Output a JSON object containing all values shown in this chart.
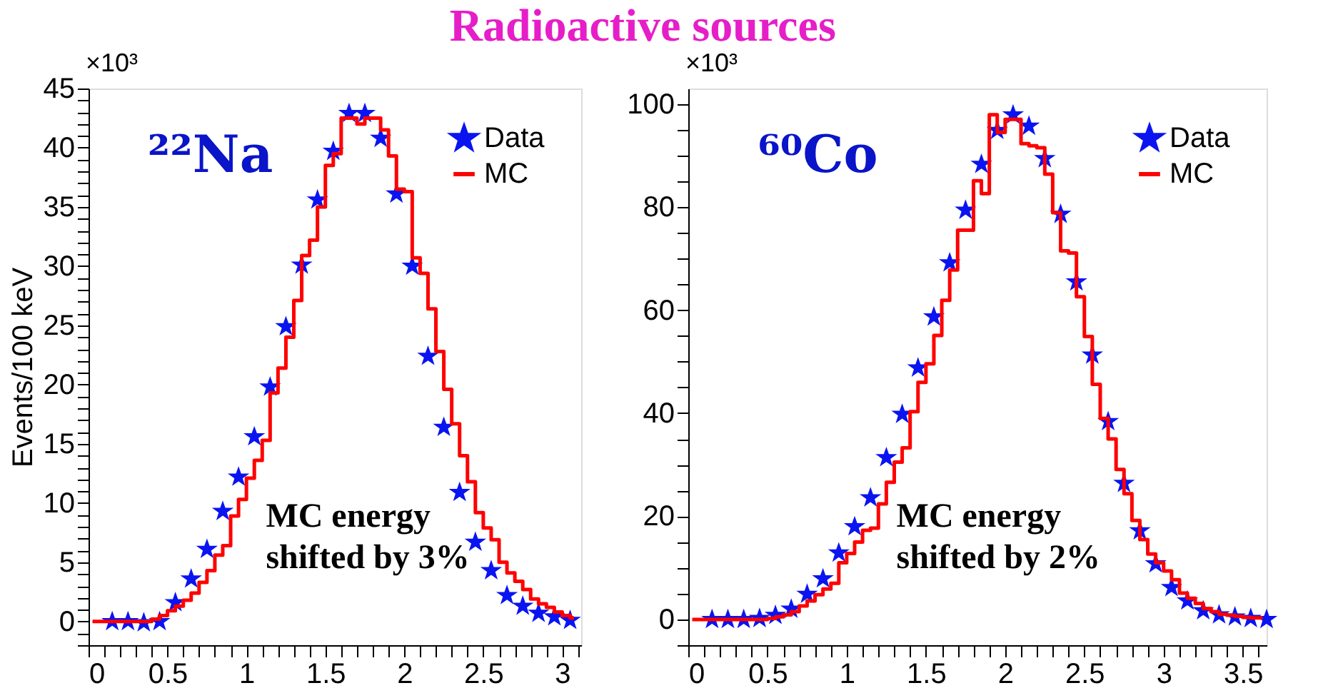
{
  "chart_data": [
    {
      "type": "scatter",
      "title": "Radioactive sources",
      "ylabel": "Events/100 keV",
      "annotations": [
        "×10³",
        "²²Na",
        "MC energy\nshifted by 3%"
      ],
      "xlim": [
        0,
        3.12
      ],
      "ylim": [
        -2,
        45
      ],
      "xticks": [
        0,
        {
          "value": 0.1,
          "label": null
        },
        {
          "value": 0.2,
          "label": null
        },
        {
          "value": 0.3,
          "label": null
        },
        {
          "value": 0.4,
          "label": null
        },
        0.5,
        {
          "value": 0.6,
          "label": null
        },
        {
          "value": 0.7,
          "label": null
        },
        {
          "value": 0.8,
          "label": null
        },
        {
          "value": 0.9,
          "label": null
        },
        1,
        {
          "value": 1.1,
          "label": null
        },
        {
          "value": 1.2,
          "label": null
        },
        {
          "value": 1.3,
          "label": null
        },
        {
          "value": 1.4,
          "label": null
        },
        1.5,
        {
          "value": 1.6,
          "label": null
        },
        {
          "value": 1.7,
          "label": null
        },
        {
          "value": 1.8,
          "label": null
        },
        {
          "value": 1.9,
          "label": null
        },
        2,
        {
          "value": 2.1,
          "label": null
        },
        {
          "value": 2.2,
          "label": null
        },
        {
          "value": 2.3,
          "label": null
        },
        {
          "value": 2.4,
          "label": null
        },
        2.5,
        {
          "value": 2.6,
          "label": null
        },
        {
          "value": 2.7,
          "label": null
        },
        {
          "value": 2.8,
          "label": null
        },
        {
          "value": 2.9,
          "label": null
        },
        3,
        {
          "value": 3.1,
          "label": null
        }
      ],
      "yticks": [
        {
          "value": -2,
          "label": null
        },
        {
          "value": -1,
          "label": null
        },
        0,
        {
          "value": 1,
          "label": null
        },
        {
          "value": 2,
          "label": null
        },
        {
          "value": 3,
          "label": null
        },
        {
          "value": 4,
          "label": null
        },
        5,
        {
          "value": 6,
          "label": null
        },
        {
          "value": 7,
          "label": null
        },
        {
          "value": 8,
          "label": null
        },
        {
          "value": 9,
          "label": null
        },
        10,
        {
          "value": 11,
          "label": null
        },
        {
          "value": 12,
          "label": null
        },
        {
          "value": 13,
          "label": null
        },
        {
          "value": 14,
          "label": null
        },
        15,
        {
          "value": 16,
          "label": null
        },
        {
          "value": 17,
          "label": null
        },
        {
          "value": 18,
          "label": null
        },
        {
          "value": 19,
          "label": null
        },
        20,
        {
          "value": 21,
          "label": null
        },
        {
          "value": 22,
          "label": null
        },
        {
          "value": 23,
          "label": null
        },
        {
          "value": 24,
          "label": null
        },
        25,
        {
          "value": 26,
          "label": null
        },
        {
          "value": 27,
          "label": null
        },
        {
          "value": 28,
          "label": null
        },
        {
          "value": 29,
          "label": null
        },
        30,
        {
          "value": 31,
          "label": null
        },
        {
          "value": 32,
          "label": null
        },
        {
          "value": 33,
          "label": null
        },
        {
          "value": 34,
          "label": null
        },
        35,
        {
          "value": 36,
          "label": null
        },
        {
          "value": 37,
          "label": null
        },
        {
          "value": 38,
          "label": null
        },
        {
          "value": 39,
          "label": null
        },
        40,
        {
          "value": 41,
          "label": null
        },
        {
          "value": 42,
          "label": null
        },
        {
          "value": 43,
          "label": null
        },
        {
          "value": 44,
          "label": null
        },
        45
      ],
      "grid": false,
      "legend": "top right",
      "series": [
        {
          "name": "Data",
          "marker": "star",
          "color": "#0a14f0",
          "x": [
            0.15,
            0.25,
            0.35,
            0.45,
            0.55,
            0.65,
            0.75,
            0.85,
            0.95,
            1.05,
            1.15,
            1.25,
            1.35,
            1.45,
            1.55,
            1.65,
            1.75,
            1.85,
            1.95,
            2.05,
            2.15,
            2.25,
            2.35,
            2.45,
            2.55,
            2.65,
            2.75,
            2.85,
            2.95,
            3.05
          ],
          "values": [
            0,
            0,
            -0.1,
            0,
            1.6,
            3.6,
            6.1,
            9.3,
            12.2,
            15.6,
            19.8,
            24.9,
            30.1,
            35.6,
            39.7,
            42.9,
            42.9,
            40.8,
            36.1,
            30.0,
            22.4,
            16.4,
            10.9,
            6.7,
            4.3,
            2.2,
            1.3,
            0.7,
            0.4,
            0.1
          ]
        },
        {
          "name": "MC",
          "type": "step",
          "color": "#ff0000",
          "line_style": "solid",
          "x": [
            0.025,
            0.075,
            0.125,
            0.175,
            0.225,
            0.275,
            0.325,
            0.375,
            0.425,
            0.475,
            0.525,
            0.575,
            0.625,
            0.675,
            0.725,
            0.775,
            0.825,
            0.875,
            0.925,
            0.975,
            1.025,
            1.075,
            1.125,
            1.175,
            1.225,
            1.275,
            1.325,
            1.375,
            1.425,
            1.475,
            1.525,
            1.575,
            1.625,
            1.675,
            1.725,
            1.775,
            1.825,
            1.875,
            1.925,
            1.975,
            2.025,
            2.075,
            2.125,
            2.175,
            2.225,
            2.275,
            2.325,
            2.375,
            2.425,
            2.475,
            2.525,
            2.575,
            2.625,
            2.675,
            2.725,
            2.775,
            2.825,
            2.875,
            2.925,
            2.975,
            3.025,
            3.075
          ],
          "values": [
            0,
            0,
            0,
            0,
            0,
            0,
            0,
            0,
            0.2,
            0.5,
            0.9,
            1.3,
            1.8,
            2.4,
            3.3,
            4.3,
            5.6,
            6.4,
            8.9,
            10.3,
            12.1,
            13.6,
            15.3,
            19.3,
            21.4,
            24.0,
            27.1,
            30.9,
            32.2,
            35.0,
            38.5,
            39.5,
            42.5,
            42.5,
            42.0,
            42.5,
            42.5,
            41.5,
            39.3,
            36.5,
            36.3,
            30.7,
            29.4,
            26.4,
            22.8,
            19.6,
            16.7,
            14.0,
            11.8,
            9.2,
            7.9,
            6.9,
            5.0,
            4.1,
            3.4,
            2.7,
            1.9,
            1.5,
            1.2,
            0.8,
            0.5,
            0.3
          ]
        }
      ]
    },
    {
      "type": "scatter",
      "annotations": [
        "×10³",
        "⁶⁰Co",
        "MC energy\nshifted by 2%"
      ],
      "xlim": [
        0,
        3.65
      ],
      "ylim": [
        -5,
        103
      ],
      "xticks": [
        0,
        {
          "value": 0.1,
          "label": null
        },
        {
          "value": 0.2,
          "label": null
        },
        {
          "value": 0.3,
          "label": null
        },
        {
          "value": 0.4,
          "label": null
        },
        0.5,
        {
          "value": 0.6,
          "label": null
        },
        {
          "value": 0.7,
          "label": null
        },
        {
          "value": 0.8,
          "label": null
        },
        {
          "value": 0.9,
          "label": null
        },
        1,
        {
          "value": 1.1,
          "label": null
        },
        {
          "value": 1.2,
          "label": null
        },
        {
          "value": 1.3,
          "label": null
        },
        {
          "value": 1.4,
          "label": null
        },
        1.5,
        {
          "value": 1.6,
          "label": null
        },
        {
          "value": 1.7,
          "label": null
        },
        {
          "value": 1.8,
          "label": null
        },
        {
          "value": 1.9,
          "label": null
        },
        2,
        {
          "value": 2.1,
          "label": null
        },
        {
          "value": 2.2,
          "label": null
        },
        {
          "value": 2.3,
          "label": null
        },
        {
          "value": 2.4,
          "label": null
        },
        2.5,
        {
          "value": 2.6,
          "label": null
        },
        {
          "value": 2.7,
          "label": null
        },
        {
          "value": 2.8,
          "label": null
        },
        {
          "value": 2.9,
          "label": null
        },
        3,
        {
          "value": 3.1,
          "label": null
        },
        {
          "value": 3.2,
          "label": null
        },
        {
          "value": 3.3,
          "label": null
        },
        {
          "value": 3.4,
          "label": null
        },
        3.5,
        {
          "value": 3.6,
          "label": null
        }
      ],
      "yticks": [
        {
          "value": -5,
          "label": null
        },
        0,
        {
          "value": 5,
          "label": null
        },
        {
          "value": 10,
          "label": null
        },
        {
          "value": 15,
          "label": null
        },
        20,
        {
          "value": 25,
          "label": null
        },
        {
          "value": 30,
          "label": null
        },
        {
          "value": 35,
          "label": null
        },
        40,
        {
          "value": 45,
          "label": null
        },
        {
          "value": 50,
          "label": null
        },
        {
          "value": 55,
          "label": null
        },
        60,
        {
          "value": 65,
          "label": null
        },
        {
          "value": 70,
          "label": null
        },
        {
          "value": 75,
          "label": null
        },
        80,
        {
          "value": 85,
          "label": null
        },
        {
          "value": 90,
          "label": null
        },
        {
          "value": 95,
          "label": null
        },
        100
      ],
      "grid": false,
      "legend": "top right",
      "series": [
        {
          "name": "Data",
          "marker": "star",
          "color": "#0a14f0",
          "x": [
            0.15,
            0.25,
            0.35,
            0.45,
            0.55,
            0.65,
            0.75,
            0.85,
            0.95,
            1.05,
            1.15,
            1.25,
            1.35,
            1.45,
            1.55,
            1.65,
            1.75,
            1.85,
            1.95,
            2.05,
            2.15,
            2.25,
            2.35,
            2.45,
            2.55,
            2.65,
            2.75,
            2.85,
            2.95,
            3.05,
            3.15,
            3.25,
            3.35,
            3.45,
            3.55,
            3.65
          ],
          "values": [
            0,
            0,
            0,
            0.2,
            0.8,
            2.0,
            4.9,
            7.9,
            12.9,
            18.0,
            23.6,
            31.4,
            39.8,
            48.8,
            58.7,
            69.2,
            79.4,
            88.3,
            94.9,
            97.9,
            95.7,
            89.4,
            78.6,
            65.5,
            51.3,
            38.4,
            26.4,
            17.2,
            10.8,
            6.2,
            3.6,
            1.7,
            0.9,
            0.5,
            0.2,
            0
          ]
        },
        {
          "name": "MC",
          "type": "step",
          "color": "#ff0000",
          "line_style": "solid",
          "x": [
            0.025,
            0.075,
            0.125,
            0.175,
            0.225,
            0.275,
            0.325,
            0.375,
            0.425,
            0.475,
            0.525,
            0.575,
            0.625,
            0.675,
            0.725,
            0.775,
            0.825,
            0.875,
            0.925,
            0.975,
            1.025,
            1.075,
            1.125,
            1.175,
            1.225,
            1.275,
            1.325,
            1.375,
            1.425,
            1.475,
            1.525,
            1.575,
            1.625,
            1.675,
            1.725,
            1.775,
            1.825,
            1.875,
            1.925,
            1.975,
            2.025,
            2.075,
            2.125,
            2.175,
            2.225,
            2.275,
            2.325,
            2.375,
            2.425,
            2.475,
            2.525,
            2.575,
            2.625,
            2.675,
            2.725,
            2.775,
            2.825,
            2.875,
            2.925,
            2.975,
            3.025,
            3.075,
            3.125,
            3.175,
            3.225,
            3.275,
            3.325,
            3.375,
            3.425,
            3.475,
            3.525,
            3.575,
            3.625
          ],
          "values": [
            0,
            0,
            0,
            0,
            0,
            0,
            0,
            0,
            0,
            0,
            0.2,
            0.5,
            0.9,
            1.5,
            2.6,
            3.6,
            4.8,
            5.9,
            7.0,
            11.0,
            12.8,
            15.0,
            17.3,
            17.7,
            22.4,
            26.6,
            30.5,
            33.3,
            40.3,
            46.0,
            49.6,
            55.1,
            61.9,
            67.8,
            75.5,
            75.5,
            85.1,
            82.6,
            97.9,
            94.5,
            97.0,
            97.0,
            92.3,
            91.9,
            91.5,
            86.4,
            78.9,
            71.5,
            71.1,
            62.6,
            54.9,
            45.6,
            39.0,
            35.0,
            29.1,
            24.4,
            19.2,
            15.5,
            12.7,
            11.0,
            9.4,
            7.7,
            5.1,
            4.1,
            3.1,
            2.1,
            1.5,
            1.0,
            0.8,
            0.6,
            0.4,
            0.3,
            0.3
          ]
        }
      ]
    }
  ]
}
